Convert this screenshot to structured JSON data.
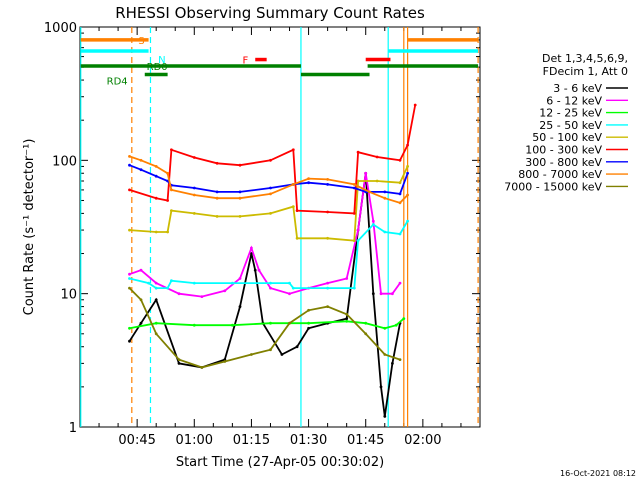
{
  "chart_data": {
    "type": "line",
    "title": "RHESSI Observing Summary Count Rates",
    "xlabel": "Start Time (27-Apr-05 00:30:02)",
    "ylabel": "Count Rate (s⁻¹ detector⁻¹)",
    "y_scale": "log",
    "ylim": [
      1,
      1000
    ],
    "y_ticks": [
      1,
      10,
      100,
      1000
    ],
    "y_tick_labels": [
      "1",
      "10",
      "100",
      "1000"
    ],
    "x_range_minutes": [
      30,
      135
    ],
    "x_ticks": [
      {
        "label": "00:45",
        "minutes": 45
      },
      {
        "label": "01:00",
        "minutes": 60
      },
      {
        "label": "01:15",
        "minutes": 75
      },
      {
        "label": "01:30",
        "minutes": 90
      },
      {
        "label": "01:45",
        "minutes": 105
      },
      {
        "label": "02:00",
        "minutes": 120
      }
    ],
    "legend": {
      "position": "right",
      "header": [
        "Det 1,3,4,5,6,9,",
        "FDecim 1, Att 0"
      ]
    },
    "series": [
      {
        "name": "3 - 6 keV",
        "color": "#000000",
        "points": [
          [
            43,
            4.4
          ],
          [
            46,
            6
          ],
          [
            50,
            9
          ],
          [
            56,
            3
          ],
          [
            62,
            2.8
          ],
          [
            68,
            3.2
          ],
          [
            72,
            8
          ],
          [
            75,
            20
          ],
          [
            76,
            15
          ],
          [
            78,
            6
          ],
          [
            83,
            3.5
          ],
          [
            87,
            4
          ],
          [
            90,
            5.5
          ],
          [
            95,
            6
          ],
          [
            100,
            6.5
          ],
          [
            103,
            30
          ],
          [
            105,
            80
          ],
          [
            107,
            10
          ],
          [
            109,
            2
          ],
          [
            110,
            1.2
          ],
          [
            112,
            3
          ],
          [
            114,
            6
          ]
        ]
      },
      {
        "name": "6 - 12 keV",
        "color": "#ff00ff",
        "points": [
          [
            43,
            14
          ],
          [
            46,
            15
          ],
          [
            50,
            12
          ],
          [
            56,
            10
          ],
          [
            62,
            9.5
          ],
          [
            68,
            10.5
          ],
          [
            72,
            13
          ],
          [
            75,
            22
          ],
          [
            77,
            15
          ],
          [
            80,
            11
          ],
          [
            85,
            10
          ],
          [
            90,
            11
          ],
          [
            95,
            12
          ],
          [
            100,
            13
          ],
          [
            103,
            30
          ],
          [
            105,
            80
          ],
          [
            107,
            35
          ],
          [
            109,
            10
          ],
          [
            112,
            10
          ],
          [
            114,
            12
          ]
        ]
      },
      {
        "name": "12 - 25 keV",
        "color": "#00ff00",
        "points": [
          [
            43,
            5.5
          ],
          [
            50,
            6
          ],
          [
            60,
            5.8
          ],
          [
            70,
            5.8
          ],
          [
            80,
            6
          ],
          [
            90,
            6
          ],
          [
            100,
            6.2
          ],
          [
            105,
            6
          ],
          [
            110,
            5.5
          ],
          [
            113,
            5.8
          ],
          [
            115,
            6.5
          ]
        ]
      },
      {
        "name": "25 - 50 keV",
        "color": "#00ffff",
        "points": [
          [
            43,
            13
          ],
          [
            48,
            12
          ],
          [
            50,
            11
          ],
          [
            53,
            11
          ],
          [
            54,
            12.5
          ],
          [
            60,
            12
          ],
          [
            70,
            12
          ],
          [
            80,
            12
          ],
          [
            85,
            12
          ],
          [
            86,
            11
          ],
          [
            95,
            11
          ],
          [
            102,
            11
          ],
          [
            103,
            25
          ],
          [
            107,
            33
          ],
          [
            110,
            29
          ],
          [
            114,
            28
          ],
          [
            116,
            35
          ]
        ]
      },
      {
        "name": "50 - 100 keV",
        "color": "#ccbb00",
        "points": [
          [
            43,
            30
          ],
          [
            50,
            29
          ],
          [
            53,
            29
          ],
          [
            54,
            42
          ],
          [
            60,
            40
          ],
          [
            66,
            38
          ],
          [
            72,
            38
          ],
          [
            80,
            40
          ],
          [
            86,
            45
          ],
          [
            87,
            26
          ],
          [
            95,
            26
          ],
          [
            102,
            25
          ],
          [
            103,
            70
          ],
          [
            108,
            70
          ],
          [
            114,
            68
          ],
          [
            116,
            90
          ]
        ]
      },
      {
        "name": "100 - 300 keV",
        "color": "#ff0000",
        "points": [
          [
            43,
            60
          ],
          [
            50,
            52
          ],
          [
            53,
            50
          ],
          [
            54,
            120
          ],
          [
            60,
            105
          ],
          [
            66,
            95
          ],
          [
            72,
            92
          ],
          [
            80,
            100
          ],
          [
            86,
            120
          ],
          [
            87,
            42
          ],
          [
            95,
            41
          ],
          [
            102,
            40
          ],
          [
            103,
            115
          ],
          [
            108,
            106
          ],
          [
            114,
            100
          ],
          [
            116,
            130
          ],
          [
            118,
            260
          ]
        ]
      },
      {
        "name": "300 - 800 keV",
        "color": "#0000ff",
        "points": [
          [
            43,
            92
          ],
          [
            46,
            85
          ],
          [
            50,
            76
          ],
          [
            53,
            70
          ],
          [
            54,
            65
          ],
          [
            60,
            62
          ],
          [
            66,
            58
          ],
          [
            72,
            58
          ],
          [
            80,
            62
          ],
          [
            86,
            66
          ],
          [
            90,
            68
          ],
          [
            95,
            66
          ],
          [
            102,
            62
          ],
          [
            105,
            58
          ],
          [
            110,
            58
          ],
          [
            114,
            56
          ],
          [
            116,
            80
          ]
        ]
      },
      {
        "name": "800 - 7000 keV",
        "color": "#ff8000",
        "points": [
          [
            43,
            107
          ],
          [
            46,
            100
          ],
          [
            50,
            90
          ],
          [
            53,
            80
          ],
          [
            54,
            60
          ],
          [
            60,
            55
          ],
          [
            66,
            52
          ],
          [
            72,
            52
          ],
          [
            80,
            56
          ],
          [
            86,
            66
          ],
          [
            90,
            73
          ],
          [
            95,
            72
          ],
          [
            102,
            66
          ],
          [
            106,
            58
          ],
          [
            110,
            52
          ],
          [
            114,
            48
          ],
          [
            116,
            55
          ]
        ]
      },
      {
        "name": "7000 - 15000 keV",
        "color": "#808000",
        "points": [
          [
            43,
            11
          ],
          [
            46,
            9
          ],
          [
            50,
            5
          ],
          [
            56,
            3.2
          ],
          [
            62,
            2.8
          ],
          [
            68,
            3.1
          ],
          [
            75,
            3.5
          ],
          [
            80,
            3.8
          ],
          [
            85,
            6
          ],
          [
            90,
            7.5
          ],
          [
            95,
            8
          ],
          [
            100,
            7
          ],
          [
            105,
            5
          ],
          [
            110,
            3.5
          ],
          [
            114,
            3.2
          ]
        ]
      }
    ],
    "annotations": {
      "vertical_lines": [
        {
          "minutes": 30.2,
          "color": "#00ffff",
          "style": "solid"
        },
        {
          "minutes": 43.6,
          "color": "#ff8000",
          "style": "dashed"
        },
        {
          "minutes": 48.5,
          "color": "#00ffff",
          "style": "dashed"
        },
        {
          "minutes": 88.0,
          "color": "#00ffff",
          "style": "solid"
        },
        {
          "minutes": 110.9,
          "color": "#00ffff",
          "style": "solid"
        },
        {
          "minutes": 115.0,
          "color": "#ff8000",
          "style": "solid"
        },
        {
          "minutes": 116.0,
          "color": "#ff8000",
          "style": "solid"
        },
        {
          "minutes": 134.5,
          "color": "#ff8000",
          "style": "dashed"
        }
      ],
      "bars": [
        {
          "label": "S",
          "color": "#ff8000",
          "y": 800,
          "segments": [
            [
              30.2,
              48.0
            ],
            [
              116.0,
              134.5
            ]
          ]
        },
        {
          "label": "N",
          "color": "#00ffff",
          "y": 660,
          "segments": [
            [
              30.2,
              48.0
            ],
            [
              110.9,
              134.5
            ]
          ]
        },
        {
          "label": "F",
          "color": "#ff0000",
          "y": 570,
          "segments": [
            [
              76.0,
              79.0
            ],
            [
              105.0,
              111.5
            ]
          ]
        },
        {
          "label": "RD0",
          "color": "#008000",
          "y": 510,
          "segments": [
            [
              30.2,
              134.5
            ]
          ],
          "gaps": [
            [
              88.0,
              105.5
            ]
          ]
        },
        {
          "label": "RD4",
          "color": "#008000",
          "y": 440,
          "segments": [
            [
              47.0,
              53.0
            ],
            [
              88.0,
              106.0
            ]
          ]
        }
      ]
    }
  },
  "footer": {
    "datestamp": "16-Oct-2021 08:12"
  }
}
